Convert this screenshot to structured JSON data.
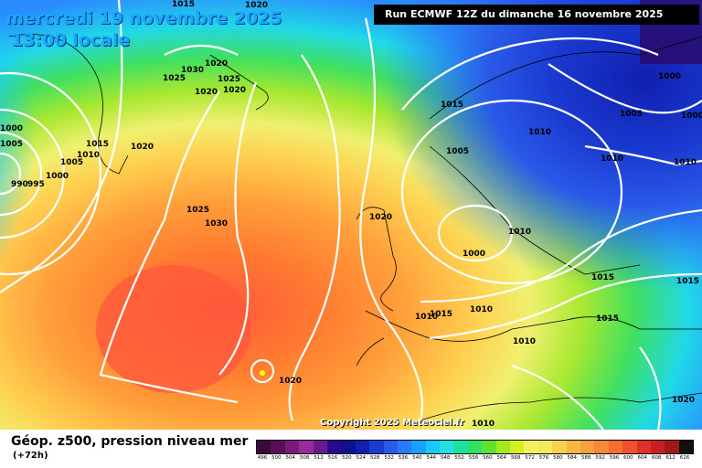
{
  "map": {
    "title_date": "mercredi 19 novembre 2025",
    "title_time": "13:00 locale",
    "run_info": "Run ECMWF 12Z du dimanche 16 novembre 2025",
    "copyright": "Copyright 2025 Meteociel.fr",
    "isobar_labels": [
      "1015",
      "1020",
      "1030",
      "1025",
      "1020",
      "1025",
      "1020",
      "1020",
      "1010",
      "1015",
      "1005",
      "1000",
      "990",
      "995",
      "1005",
      "1000",
      "1020",
      "1025",
      "1030",
      "1020",
      "1000",
      "1015",
      "1005",
      "1010",
      "1010",
      "1000",
      "1005",
      "1000",
      "1010",
      "1010",
      "1015",
      "1015",
      "1015",
      "1010",
      "1010",
      "1015",
      "1010",
      "1020",
      "1020",
      "1010"
    ],
    "colors": {
      "ocean_low": "#1c3fbf",
      "high_center": "#ff5a3c",
      "isobars": "#ffffff",
      "coastline": "#000000"
    }
  },
  "legend": {
    "title": "Géop. z500, pression niveau mer",
    "subtitle": "(+72h)",
    "scale_values": [
      "496",
      "500",
      "504",
      "508",
      "512",
      "516",
      "520",
      "524",
      "528",
      "532",
      "536",
      "540",
      "544",
      "548",
      "552",
      "556",
      "560",
      "564",
      "568",
      "572",
      "576",
      "580",
      "584",
      "588",
      "592",
      "596",
      "600",
      "604",
      "608",
      "612",
      "616"
    ],
    "scale_colors": [
      "#3a0a3a",
      "#5a0f5a",
      "#7a1a7a",
      "#9a2a9a",
      "#6a1a8a",
      "#2a0a8a",
      "#101090",
      "#1020b0",
      "#1a3ad0",
      "#2a5ae8",
      "#2a7aff",
      "#1aa0ff",
      "#1ac8ff",
      "#20e0e0",
      "#20e0a0",
      "#30e060",
      "#60e030",
      "#a0e820",
      "#d0f020",
      "#f0f060",
      "#f8e860",
      "#f8d050",
      "#f8b840",
      "#f8a040",
      "#f88838",
      "#f87030",
      "#f05030",
      "#e03028",
      "#c82020",
      "#a01818",
      "#101010"
    ]
  }
}
